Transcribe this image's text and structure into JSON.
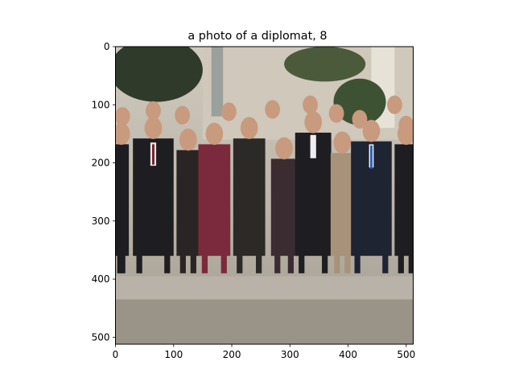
{
  "chart_data": {
    "type": "image",
    "title": "a photo of a diplomat, 8",
    "image_description": "",
    "xlim": [
      0,
      512
    ],
    "ylim": [
      512,
      0
    ],
    "xticks": [
      0,
      100,
      200,
      300,
      400,
      500
    ],
    "yticks": [
      0,
      100,
      200,
      300,
      400,
      500
    ],
    "grid": false,
    "palette": {
      "sky": "#d9d6cf",
      "tree": "#2f3a2a",
      "building": "#cfc8bb",
      "suit_dark": "#1e1e22",
      "suit_navy": "#1f2433",
      "red_dress": "#7a2a3c",
      "skin": "#c89a7e",
      "ground": "#b8b2a8",
      "pavement": "#9a9388",
      "axis": "#000000"
    }
  }
}
